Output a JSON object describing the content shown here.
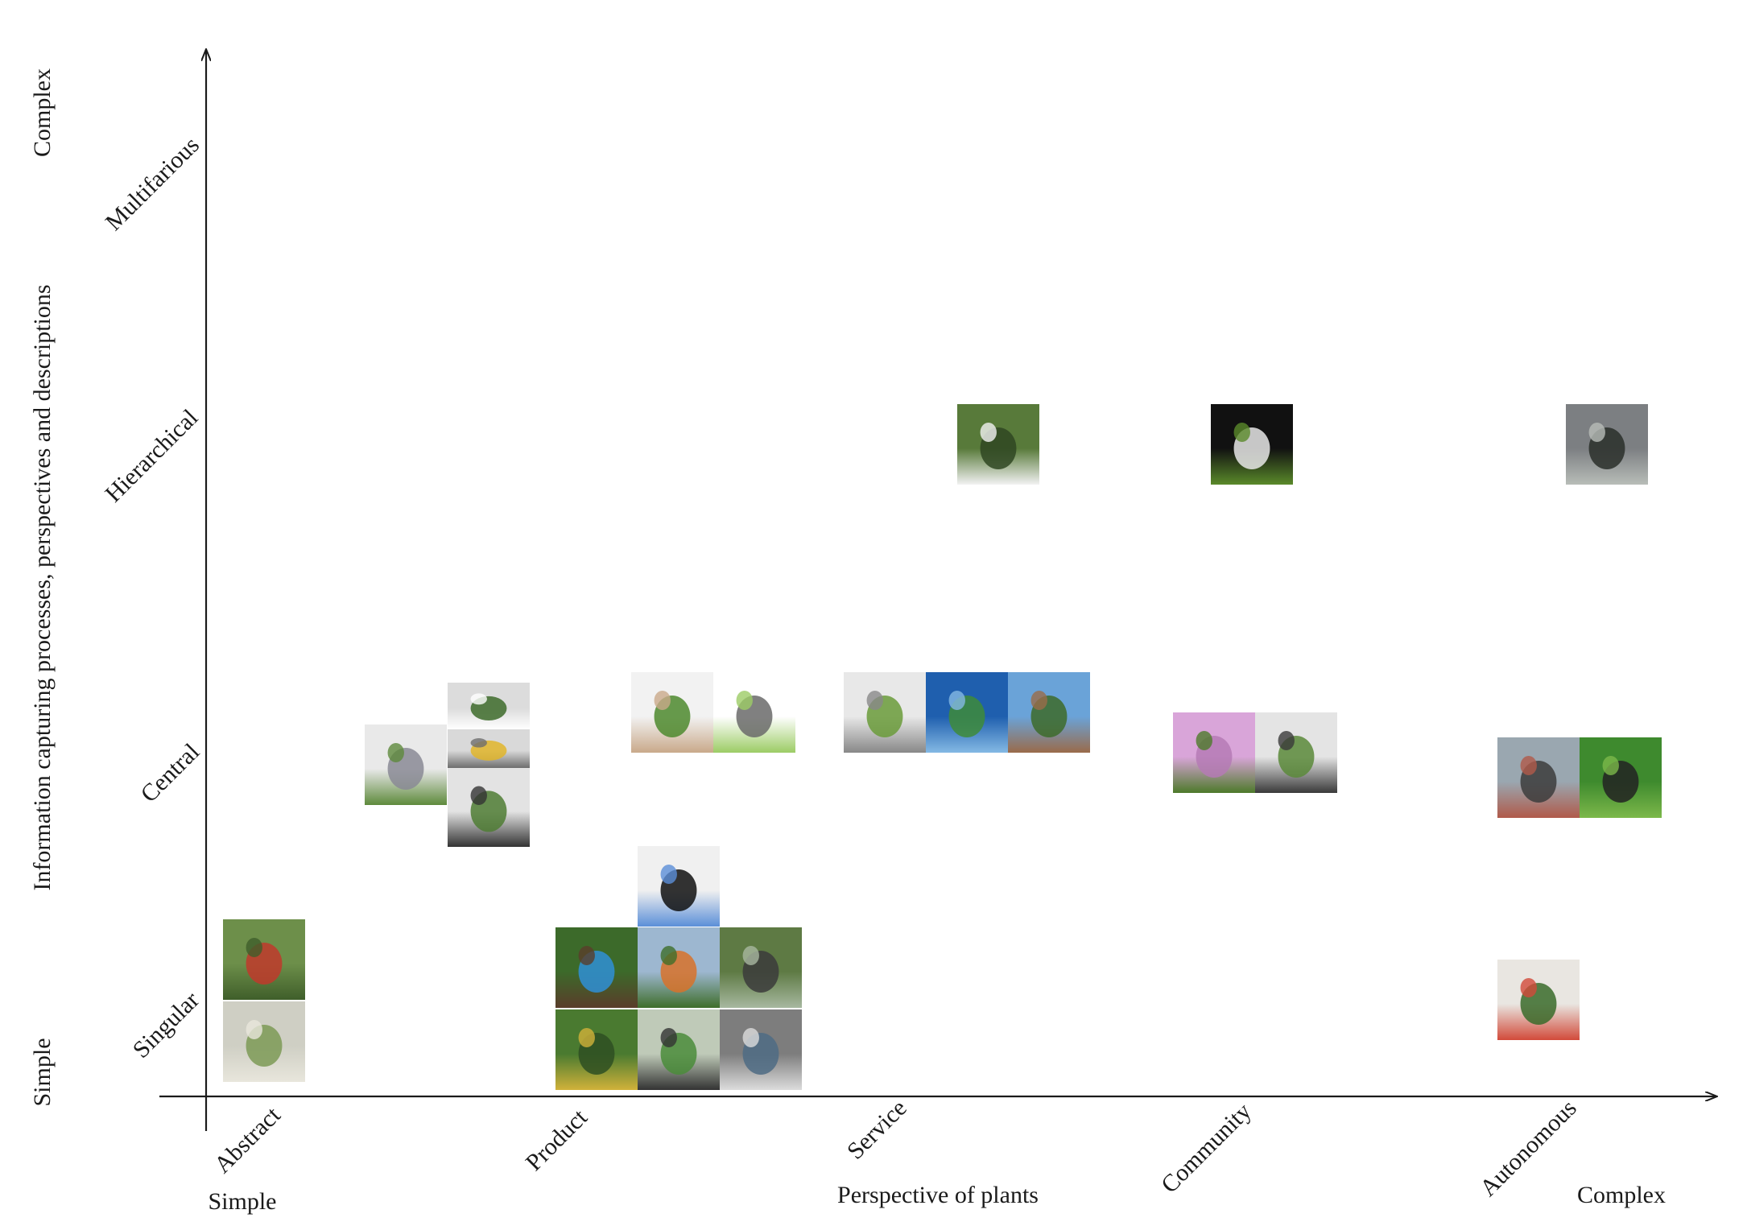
{
  "y_axis": {
    "title": "Information capturing processes, perspectives and descriptions",
    "end_low": "Simple",
    "end_high": "Complex",
    "levels": [
      "Singular",
      "Central",
      "Hierarchical",
      "Multifarious"
    ]
  },
  "x_axis": {
    "title": "Perspective of plants",
    "end_low": "Simple",
    "end_high": "Complex",
    "levels": [
      "Abstract",
      "Product",
      "Service",
      "Community",
      "Autonomous"
    ]
  },
  "colors": {
    "axis": "#1a1a1a",
    "background": "#ffffff"
  },
  "thumbnails": [
    {
      "id": "person-hugging-tree",
      "palette": [
        "#6d8f4a",
        "#c0392b",
        "#3f5e2a"
      ]
    },
    {
      "id": "green-building-facade",
      "palette": [
        "#cfcfc4",
        "#7d9a56",
        "#e8e6dc"
      ]
    },
    {
      "id": "desk-plant-robot",
      "palette": [
        "#e9e9e9",
        "#8a8a95",
        "#5e8a3c"
      ]
    },
    {
      "id": "potted-leaf-plant",
      "palette": [
        "#dcdcdc",
        "#3d6b2a",
        "#ffffff"
      ]
    },
    {
      "id": "sunflower-screen",
      "palette": [
        "#d9d9d9",
        "#e0b52a",
        "#6e6e6e"
      ]
    },
    {
      "id": "plant-laptop-setup",
      "palette": [
        "#e3e3e3",
        "#4f7d34",
        "#333333"
      ]
    },
    {
      "id": "plant-in-glass-hand",
      "palette": [
        "#f2f2f2",
        "#4e8a2e",
        "#c9a98a"
      ]
    },
    {
      "id": "system-sketch",
      "palette": [
        "#ffffff",
        "#6a6a6a",
        "#9ccc65"
      ]
    },
    {
      "id": "orchid-display",
      "palette": [
        "#f0f0f0",
        "#111111",
        "#5b8fd8"
      ]
    },
    {
      "id": "blue-sensor-device",
      "palette": [
        "#3c6a2a",
        "#2f8fd6",
        "#5a3d2a"
      ]
    },
    {
      "id": "field-robot-orange",
      "palette": [
        "#9db7d0",
        "#d8722a",
        "#3f6e2a"
      ]
    },
    {
      "id": "raised-bed-arm",
      "palette": [
        "#5e7a44",
        "#3b3b3b",
        "#a7b8a0"
      ]
    },
    {
      "id": "soil-probe-pole",
      "palette": [
        "#4a7a30",
        "#2e4f22",
        "#d1b23a"
      ]
    },
    {
      "id": "greenhouse-arm",
      "palette": [
        "#bfcab8",
        "#4a8c3a",
        "#333333"
      ]
    },
    {
      "id": "lab-rover",
      "palette": [
        "#7d7d7d",
        "#4d6b84",
        "#dcdcdc"
      ]
    },
    {
      "id": "plant-wall-pockets",
      "palette": [
        "#e8e8e8",
        "#6a9b3a",
        "#888888"
      ]
    },
    {
      "id": "canopy-structure",
      "palette": [
        "#1f5fae",
        "#3e8b3a",
        "#84b9e4"
      ]
    },
    {
      "id": "vertical-forest-tower",
      "palette": [
        "#6aa3d8",
        "#3d6b2a",
        "#9a6b4a"
      ]
    },
    {
      "id": "sensor-in-forest",
      "palette": [
        "#587a3a",
        "#2f4722",
        "#f2f2f2"
      ]
    },
    {
      "id": "robot-arm-plant-tray",
      "palette": [
        "#111111",
        "#e8e8e8",
        "#5a8a2a"
      ]
    },
    {
      "id": "rover-on-rocks",
      "palette": [
        "#7c7f82",
        "#2a2f2a",
        "#b8bdb8"
      ]
    },
    {
      "id": "plant-pink-light",
      "palette": [
        "#d9a5d9",
        "#b57ab5",
        "#4d7a2a"
      ]
    },
    {
      "id": "plant-tablet-card",
      "palette": [
        "#e4e4e4",
        "#5b8a3a",
        "#3a3a3a"
      ]
    },
    {
      "id": "sphere-on-street",
      "palette": [
        "#9aa7b0",
        "#3c3c3c",
        "#b05a4a"
      ]
    },
    {
      "id": "sphere-robot-grass",
      "palette": [
        "#3e8a2e",
        "#222222",
        "#7cb84a"
      ]
    },
    {
      "id": "potted-flower-plant",
      "palette": [
        "#e9e6e1",
        "#3a6b2a",
        "#d24a3a"
      ]
    }
  ]
}
